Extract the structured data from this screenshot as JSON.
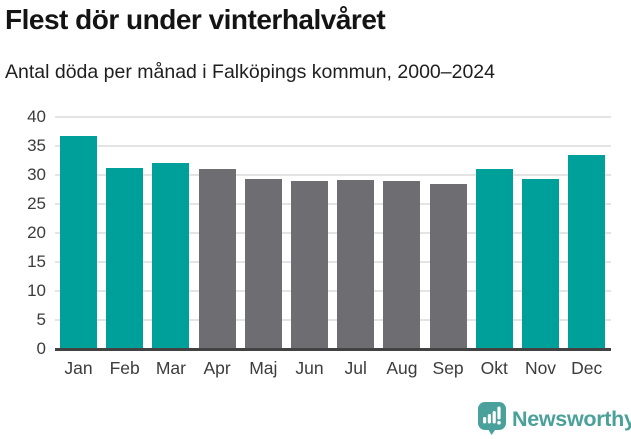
{
  "header": {
    "title": "Flest dör under vinterhalvåret",
    "subtitle": "Antal döda per månad i Falköpings kommun, 2000–2024"
  },
  "chart_data": {
    "type": "bar",
    "title": "Flest dör under vinterhalvåret",
    "subtitle": "Antal döda per månad i Falköpings kommun, 2000–2024",
    "categories": [
      "Jan",
      "Feb",
      "Mar",
      "Apr",
      "Maj",
      "Jun",
      "Jul",
      "Aug",
      "Sep",
      "Okt",
      "Nov",
      "Dec"
    ],
    "values": [
      36.8,
      31.3,
      32.0,
      31.0,
      29.4,
      29.0,
      29.1,
      28.9,
      28.4,
      31.0,
      29.4,
      33.4
    ],
    "bar_colors": [
      "teal",
      "teal",
      "teal",
      "gray",
      "gray",
      "gray",
      "gray",
      "gray",
      "gray",
      "teal",
      "teal",
      "teal"
    ],
    "colors": {
      "teal": "#00a09a",
      "gray": "#6e6e72"
    },
    "highlighted_categories": [
      "Jan",
      "Feb",
      "Mar",
      "Okt",
      "Nov",
      "Dec"
    ],
    "xlabel": "",
    "ylabel": "",
    "ylim": [
      0,
      40
    ],
    "yticks": [
      0,
      5,
      10,
      15,
      20,
      25,
      30,
      35,
      40
    ],
    "grid": true,
    "legend": "none"
  },
  "footer": {
    "brand": "Newsworthy",
    "brand_color": "#4aa09a",
    "logo_icon": "speech-bubble-bar-chart-icon"
  }
}
